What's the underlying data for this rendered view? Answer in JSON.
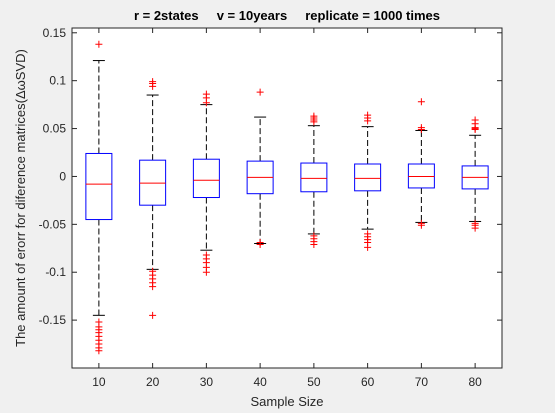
{
  "chart_data": {
    "type": "box",
    "title": "r = 2states     v = 10years     replicate = 1000 times",
    "xlabel": "Sample Size",
    "ylabel": "The amount of erorr for diference matrices(ΔωSVD)",
    "ylim": [
      -0.2,
      0.155
    ],
    "yticks": [
      -0.15,
      -0.1,
      -0.05,
      0,
      0.05,
      0.1,
      0.15
    ],
    "ytick_labels": [
      "-0.15",
      "-0.1",
      "-0.05",
      "0",
      "0.05",
      "0.1",
      "0.15"
    ],
    "categories": [
      "10",
      "20",
      "30",
      "40",
      "50",
      "60",
      "70",
      "80"
    ],
    "box_color": "#0000ff",
    "median_color": "#ff0000",
    "whisker_color": "#000000",
    "outlier_color": "#ff0000",
    "boxes": [
      {
        "q1": -0.045,
        "median": -0.008,
        "q3": 0.024,
        "whisker_low": -0.145,
        "whisker_high": 0.121,
        "outliers": [
          0.138,
          -0.152,
          -0.157,
          -0.16,
          -0.163,
          -0.167,
          -0.171,
          -0.175,
          -0.179,
          -0.182
        ]
      },
      {
        "q1": -0.03,
        "median": -0.007,
        "q3": 0.017,
        "whisker_low": -0.097,
        "whisker_high": 0.085,
        "outliers": [
          0.099,
          0.097,
          0.094,
          -0.099,
          -0.103,
          -0.107,
          -0.111,
          -0.115,
          -0.145
        ]
      },
      {
        "q1": -0.022,
        "median": -0.004,
        "q3": 0.018,
        "whisker_low": -0.077,
        "whisker_high": 0.075,
        "outliers": [
          0.086,
          0.082,
          0.077,
          -0.082,
          -0.086,
          -0.09,
          -0.095,
          -0.1
        ]
      },
      {
        "q1": -0.018,
        "median": -0.001,
        "q3": 0.016,
        "whisker_low": -0.07,
        "whisker_high": 0.062,
        "outliers": [
          0.088,
          -0.069,
          -0.071
        ]
      },
      {
        "q1": -0.016,
        "median": -0.002,
        "q3": 0.014,
        "whisker_low": -0.06,
        "whisker_high": 0.053,
        "outliers": [
          0.063,
          0.061,
          0.059,
          0.057,
          -0.062,
          -0.065,
          -0.068,
          -0.071
        ]
      },
      {
        "q1": -0.015,
        "median": -0.002,
        "q3": 0.013,
        "whisker_low": -0.055,
        "whisker_high": 0.052,
        "outliers": [
          0.064,
          0.061,
          0.058,
          -0.06,
          -0.063,
          -0.066,
          -0.069,
          -0.074
        ]
      },
      {
        "q1": -0.012,
        "median": 0.0,
        "q3": 0.013,
        "whisker_low": -0.048,
        "whisker_high": 0.048,
        "outliers": [
          0.078,
          0.051,
          0.049,
          -0.049,
          -0.051
        ]
      },
      {
        "q1": -0.013,
        "median": -0.001,
        "q3": 0.011,
        "whisker_low": -0.047,
        "whisker_high": 0.043,
        "outliers": [
          0.059,
          0.055,
          0.051,
          0.05,
          0.049,
          -0.049,
          -0.051,
          -0.054
        ]
      }
    ]
  }
}
